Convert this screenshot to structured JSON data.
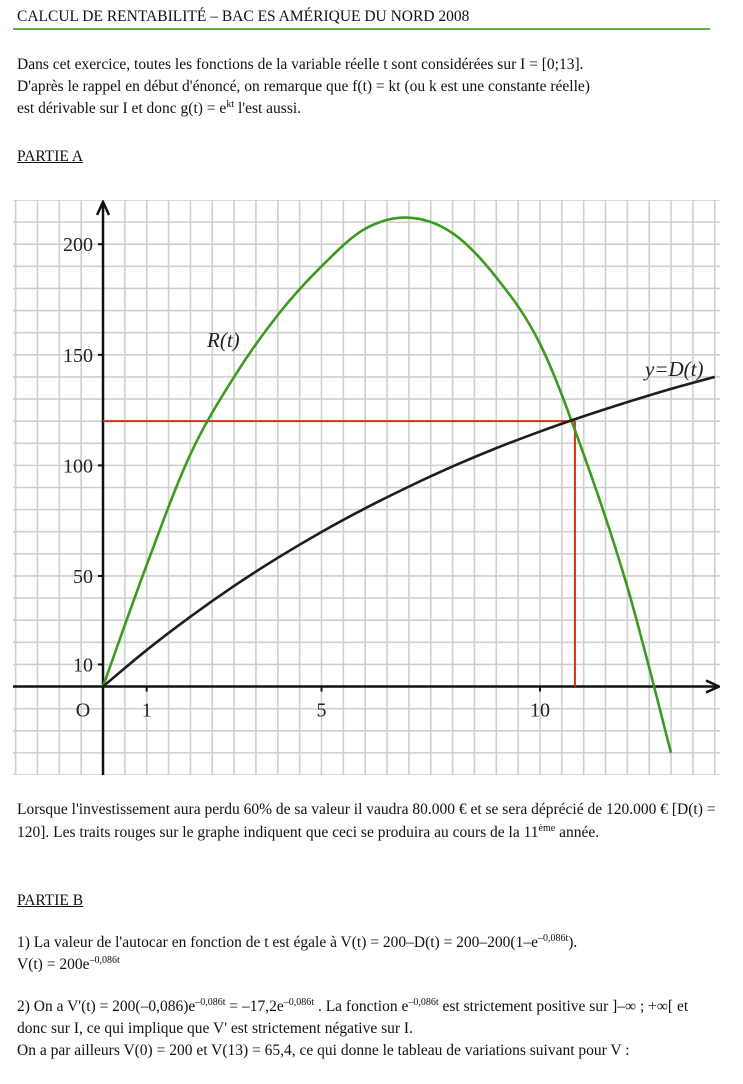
{
  "header": {
    "title": "CALCUL DE RENTABILITÉ – BAC ES AMÉRIQUE DU NORD 2008"
  },
  "intro": {
    "lines": [
      [
        "Dans cet exercice, toutes les fonctions de la variable réelle t sont considérées sur I = [0;13]."
      ],
      [
        "D'après le rappel en début d'énoncé, on remarque que f(t) = kt (ou k est une constante réelle)"
      ],
      [
        "est dérivable sur I et donc g(t) = e",
        {
          "sup": "kt"
        },
        " l'est aussi."
      ]
    ]
  },
  "part_a": {
    "title": "PARTIE A"
  },
  "chart_data": {
    "type": "line",
    "x": [
      0,
      1,
      2,
      3,
      4,
      5,
      6,
      7,
      8,
      9,
      10,
      11,
      12,
      13,
      14
    ],
    "series": [
      {
        "name": "R(t)",
        "color": "#3c9a1e",
        "values": [
          0,
          55,
          105,
          140,
          168,
          190,
          207,
          212,
          205,
          185,
          155,
          105,
          45,
          -30,
          null
        ]
      },
      {
        "name": "y=D(t)",
        "color": "#1e1e1e",
        "values": [
          0,
          16.5,
          31.6,
          45.5,
          58.2,
          69.9,
          80.6,
          90.4,
          99.5,
          107.8,
          115.3,
          122.2,
          128.6,
          134.6,
          140.0
        ]
      }
    ],
    "xlim": [
      -2.06,
      14.12
    ],
    "ylim": [
      -40,
      220
    ],
    "xticks": [
      {
        "value": 0,
        "label": "O"
      },
      1,
      5,
      10
    ],
    "yticks": [
      10,
      50,
      100,
      150,
      200
    ],
    "xgrid": [
      -2,
      -1.5,
      -1,
      -0.5,
      0,
      0.5,
      1,
      1.5,
      2,
      2.5,
      3,
      3.5,
      4,
      4.5,
      5,
      5.5,
      6,
      6.5,
      7,
      7.5,
      8,
      8.5,
      9,
      9.5,
      10,
      10.5,
      11,
      11.5,
      12,
      12.5,
      13,
      13.5,
      14
    ],
    "ygrid": [
      -40,
      -30,
      -20,
      -10,
      0,
      10,
      20,
      30,
      40,
      50,
      60,
      70,
      80,
      90,
      100,
      110,
      120,
      130,
      140,
      150,
      160,
      170,
      180,
      190,
      200,
      210,
      220
    ],
    "grid": true,
    "reference": {
      "x": 10.8,
      "y": 120,
      "color": "#d2311c"
    }
  },
  "conclusion_a": {
    "lines": [
      [
        "Lorsque l'investissement aura perdu 60% de sa valeur il vaudra 80.000 € et se sera déprécié de 120.000 € [D(t) = 120]. Les traits rouges sur le graphe indiquent que ceci se produira au cours de la 11",
        {
          "sup": "ème"
        },
        " année."
      ]
    ]
  },
  "part_b": {
    "title": "PARTIE B"
  },
  "b1": {
    "lines": [
      [
        "1) La valeur de l'autocar en fonction de t est égale à V(t) = 200–D(t) = 200–200(1–e",
        {
          "sup": "–0,086t"
        },
        ")."
      ],
      [
        "V(t) = 200e",
        {
          "sup": "–0,086t"
        }
      ]
    ]
  },
  "b2": {
    "lines": [
      [
        "2) On a V'(t) = 200(–0,086)e",
        {
          "sup": "–0,086t"
        },
        " = –17,2e",
        {
          "sup": "–0,086t"
        },
        " . La fonction e",
        {
          "sup": "–0,086t"
        },
        " est strictement positive sur ]–∞ ; +∞[ et donc sur I, ce qui implique que V' est strictement négative sur I."
      ],
      [
        "On a par ailleurs V(0) = 200 et V(13) = 65,4, ce qui donne le tableau de variations suivant pour V :"
      ]
    ]
  }
}
